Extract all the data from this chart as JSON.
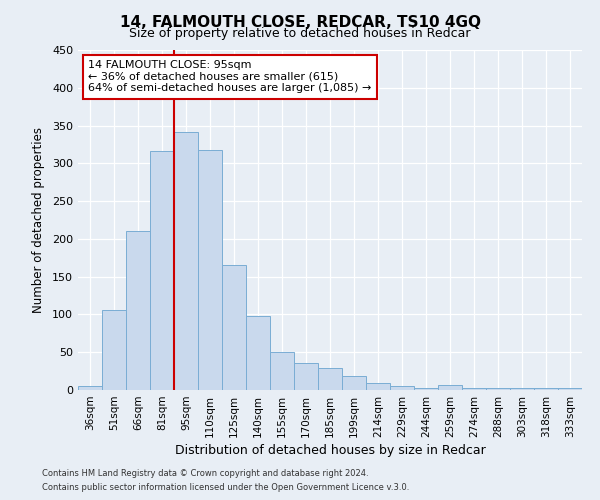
{
  "title": "14, FALMOUTH CLOSE, REDCAR, TS10 4GQ",
  "subtitle": "Size of property relative to detached houses in Redcar",
  "xlabel": "Distribution of detached houses by size in Redcar",
  "ylabel": "Number of detached properties",
  "bar_labels": [
    "36sqm",
    "51sqm",
    "66sqm",
    "81sqm",
    "95sqm",
    "110sqm",
    "125sqm",
    "140sqm",
    "155sqm",
    "170sqm",
    "185sqm",
    "199sqm",
    "214sqm",
    "229sqm",
    "244sqm",
    "259sqm",
    "274sqm",
    "288sqm",
    "303sqm",
    "318sqm",
    "333sqm"
  ],
  "bar_values": [
    5,
    106,
    210,
    316,
    342,
    318,
    165,
    98,
    50,
    36,
    29,
    18,
    9,
    5,
    3,
    7,
    2,
    2,
    2,
    2,
    2
  ],
  "bar_color": "#c9d9ed",
  "bar_edge_color": "#7aadd4",
  "vline_x": 3.5,
  "vline_color": "#cc0000",
  "ylim": [
    0,
    450
  ],
  "yticks": [
    0,
    50,
    100,
    150,
    200,
    250,
    300,
    350,
    400,
    450
  ],
  "annotation_title": "14 FALMOUTH CLOSE: 95sqm",
  "annotation_line1": "← 36% of detached houses are smaller (615)",
  "annotation_line2": "64% of semi-detached houses are larger (1,085) →",
  "annotation_box_color": "#ffffff",
  "annotation_box_edge": "#cc0000",
  "footer1": "Contains HM Land Registry data © Crown copyright and database right 2024.",
  "footer2": "Contains public sector information licensed under the Open Government Licence v.3.0.",
  "bg_color": "#e8eef5",
  "plot_bg_color": "#e8eef5"
}
